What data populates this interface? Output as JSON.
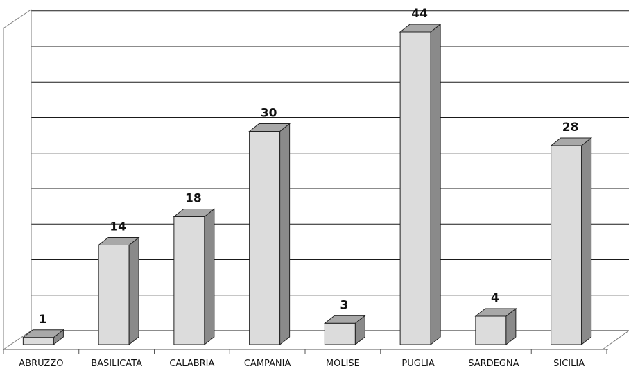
{
  "chart_data": {
    "type": "bar",
    "title": "",
    "xlabel": "",
    "ylabel": "",
    "categories": [
      "ABRUZZO",
      "BASILICATA",
      "CALABRIA",
      "CAMPANIA",
      "MOLISE",
      "PUGLIA",
      "SARDEGNA",
      "SICILIA"
    ],
    "values": [
      1,
      14,
      18,
      30,
      3,
      44,
      4,
      28
    ],
    "value_labels": [
      "1",
      "14",
      "18",
      "30",
      "3",
      "44",
      "4",
      "28"
    ],
    "ylim": [
      0,
      45
    ],
    "grid": true,
    "three_d": true,
    "colors": {
      "bar_front": "#dcdcdc",
      "bar_side": "#8a8a8a",
      "bar_top": "#a8a8a8",
      "grid": "#1a1a1a"
    }
  }
}
